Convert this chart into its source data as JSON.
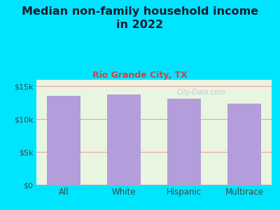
{
  "title_line1": "Median non-family household income\nin 2022",
  "subtitle": "Rio Grande City, TX",
  "categories": [
    "All",
    "White",
    "Hispanic",
    "Multirace"
  ],
  "values": [
    13500,
    13800,
    13100,
    12400
  ],
  "bar_color": "#b39ddb",
  "background_color": "#00e5ff",
  "plot_bg_color": "#e8f5e0",
  "grid_color": "#f0a0a0",
  "title_color": "#1a1a2e",
  "subtitle_color": "#cc4444",
  "tick_color": "#444444",
  "ylim": [
    0,
    16000
  ],
  "yticks": [
    0,
    5000,
    10000,
    15000
  ],
  "ytick_labels": [
    "$0",
    "$5k",
    "$10k",
    "$15k"
  ],
  "watermark": "City-Data.com",
  "title_fontsize": 11.5,
  "subtitle_fontsize": 9
}
